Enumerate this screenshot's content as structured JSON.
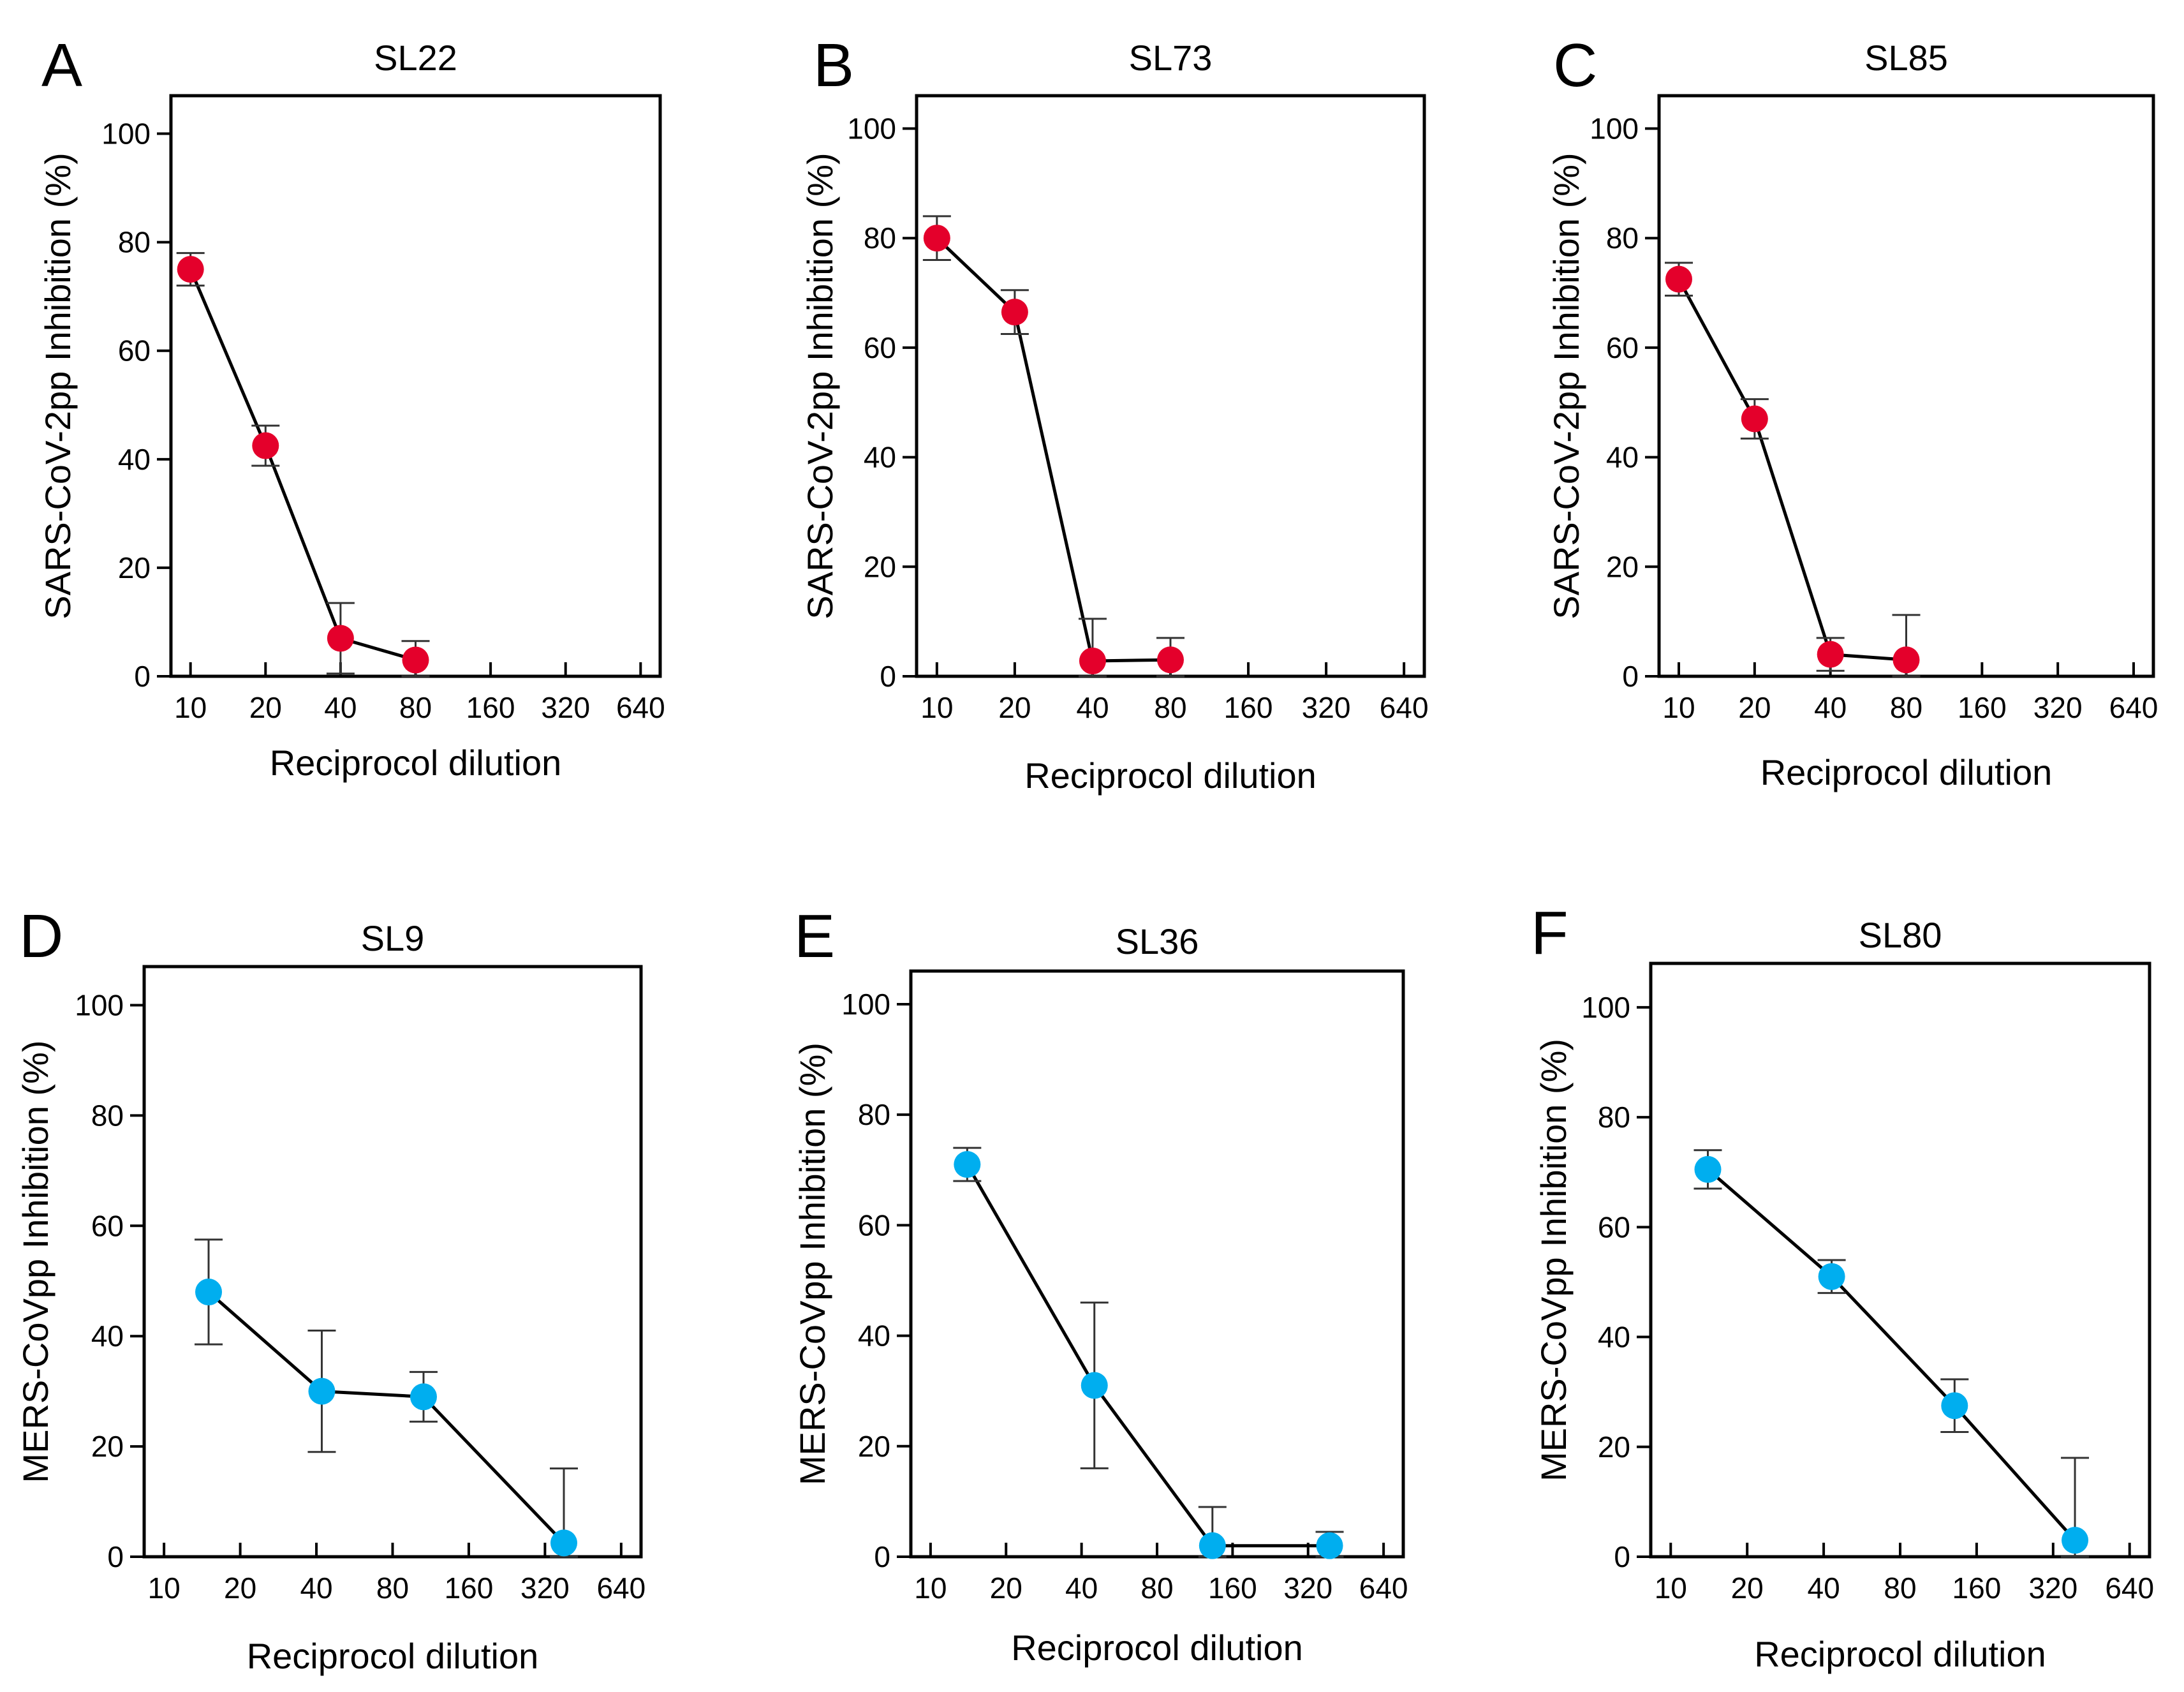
{
  "chart_data": [
    {
      "panel": "A",
      "title": "SL22",
      "type": "line",
      "xlabel": "Reciprocol dilution",
      "ylabel": "SARS-CoV-2pp Inhibition (%)",
      "xticks": [
        "10",
        "20",
        "40",
        "80",
        "160",
        "320",
        "640"
      ],
      "yticks": [
        "0",
        "20",
        "40",
        "60",
        "80",
        "100"
      ],
      "ylim": [
        0,
        107
      ],
      "marker_color": "#e4002b",
      "points": [
        {
          "x": 10,
          "y": 75,
          "err": 3
        },
        {
          "x": 20,
          "y": 42.5,
          "err": 3.7
        },
        {
          "x": 40,
          "y": 7,
          "err": 6.5
        },
        {
          "x": 80,
          "y": 3,
          "err": 3.5
        }
      ]
    },
    {
      "panel": "B",
      "title": "SL73",
      "type": "line",
      "xlabel": "Reciprocol dilution",
      "ylabel": "SARS-CoV-2pp Inhibition (%)",
      "xticks": [
        "10",
        "20",
        "40",
        "80",
        "160",
        "320",
        "640"
      ],
      "yticks": [
        "0",
        "20",
        "40",
        "60",
        "80",
        "100"
      ],
      "ylim": [
        0,
        106
      ],
      "marker_color": "#e4002b",
      "points": [
        {
          "x": 10,
          "y": 80,
          "err": 4
        },
        {
          "x": 20,
          "y": 66.5,
          "err": 4
        },
        {
          "x": 40,
          "y": 2.8,
          "err": 7.7
        },
        {
          "x": 80,
          "y": 3,
          "err": 4
        }
      ]
    },
    {
      "panel": "C",
      "title": "SL85",
      "type": "line",
      "xlabel": "Reciprocol dilution",
      "ylabel": "SARS-CoV-2pp Inhibition (%)",
      "xticks": [
        "10",
        "20",
        "40",
        "80",
        "160",
        "320",
        "640"
      ],
      "yticks": [
        "0",
        "20",
        "40",
        "60",
        "80",
        "100"
      ],
      "ylim": [
        0,
        106
      ],
      "marker_color": "#e4002b",
      "points": [
        {
          "x": 10,
          "y": 72.5,
          "err": 3
        },
        {
          "x": 20,
          "y": 47,
          "err": 3.6
        },
        {
          "x": 40,
          "y": 4,
          "err": 3
        },
        {
          "x": 80,
          "y": 3,
          "err": 8.2
        }
      ]
    },
    {
      "panel": "D",
      "title": "SL9",
      "type": "line",
      "xlabel": "Reciprocol dilution",
      "ylabel": "MERS-CoVpp Inhibition (%)",
      "xticks": [
        "10",
        "20",
        "40",
        "80",
        "160",
        "320",
        "640"
      ],
      "yticks": [
        "0",
        "20",
        "40",
        "60",
        "80",
        "100"
      ],
      "ylim": [
        0,
        107
      ],
      "marker_color": "#00aeef",
      "points": [
        {
          "x": 15,
          "y": 48,
          "err": 9.5
        },
        {
          "x": 42,
          "y": 30,
          "err": 11
        },
        {
          "x": 106,
          "y": 29,
          "err": 4.5
        },
        {
          "x": 380,
          "y": 2.5,
          "err": 13.5
        }
      ]
    },
    {
      "panel": "E",
      "title": "SL36",
      "type": "line",
      "xlabel": "Reciprocol dilution",
      "ylabel": "MERS-CoVpp Inhibition (%)",
      "xticks": [
        "10",
        "20",
        "40",
        "80",
        "160",
        "320",
        "640"
      ],
      "yticks": [
        "0",
        "20",
        "40",
        "60",
        "80",
        "100"
      ],
      "ylim": [
        0,
        106
      ],
      "marker_color": "#00aeef",
      "points": [
        {
          "x": 14,
          "y": 71,
          "err": 3
        },
        {
          "x": 45,
          "y": 31,
          "err": 15
        },
        {
          "x": 133,
          "y": 2,
          "err": 7
        },
        {
          "x": 390,
          "y": 2,
          "err": 2.5
        }
      ]
    },
    {
      "panel": "F",
      "title": "SL80",
      "type": "line",
      "xlabel": "Reciprocol dilution",
      "ylabel": "MERS-CoVpp Inhibition (%)",
      "xticks": [
        "10",
        "20",
        "40",
        "80",
        "160",
        "320",
        "640"
      ],
      "yticks": [
        "0",
        "20",
        "40",
        "60",
        "80",
        "100"
      ],
      "ylim": [
        0,
        108
      ],
      "marker_color": "#00aeef",
      "points": [
        {
          "x": 14,
          "y": 70.5,
          "err": 3.5
        },
        {
          "x": 43,
          "y": 51,
          "err": 3
        },
        {
          "x": 131,
          "y": 27.5,
          "err": 4.8
        },
        {
          "x": 390,
          "y": 3,
          "err": 15
        }
      ]
    }
  ]
}
